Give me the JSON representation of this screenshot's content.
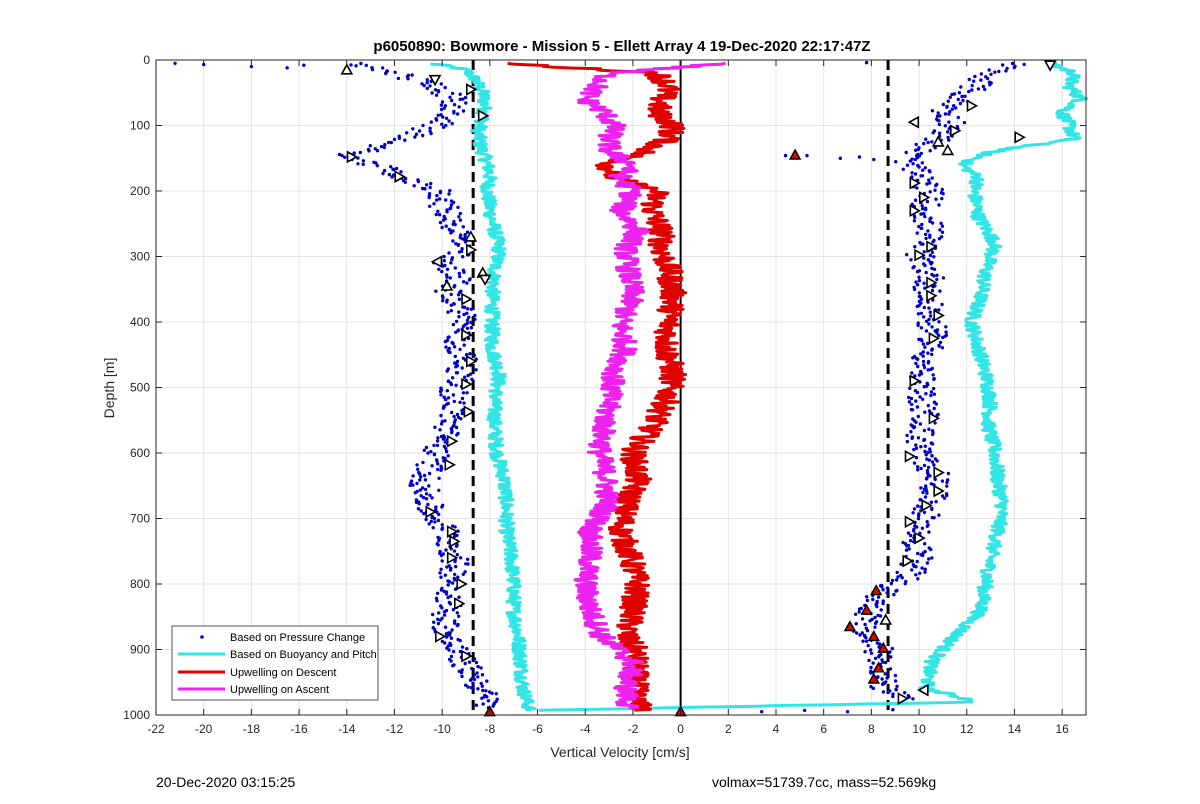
{
  "chart_data": {
    "type": "scatter",
    "title": "p6050890: Bowmore - Mission 5 - Ellett Array 4 19-Dec-2020 22:17:47Z",
    "xlabel": "Vertical Velocity [cm/s]",
    "ylabel": "Depth [m]",
    "xlim": [
      -22,
      17
    ],
    "ylim": [
      0,
      1000
    ],
    "y_reversed": true,
    "grid": true,
    "legend_position": "bottom-left",
    "x_ticks": [
      -22,
      -20,
      -18,
      -16,
      -14,
      -12,
      -10,
      -8,
      -6,
      -4,
      -2,
      0,
      2,
      4,
      6,
      8,
      10,
      12,
      14,
      16
    ],
    "y_ticks": [
      0,
      100,
      200,
      300,
      400,
      500,
      600,
      700,
      800,
      900,
      1000
    ],
    "x_tick_labels": [
      "-22",
      "-20",
      "-18",
      "-16",
      "-14",
      "-12",
      "-10",
      "-8",
      "-6",
      "-4",
      "-2",
      "0",
      "2",
      "4",
      "6",
      "8",
      "10",
      "12",
      "14",
      "16"
    ],
    "y_tick_labels": [
      "0",
      "100",
      "200",
      "300",
      "400",
      "500",
      "600",
      "700",
      "800",
      "900",
      "1000"
    ],
    "reference_lines": [
      {
        "x": -8.7,
        "style": "dashed",
        "color": "#000000"
      },
      {
        "x": 8.7,
        "style": "dashed",
        "color": "#000000"
      },
      {
        "x": 0,
        "style": "solid",
        "color": "#000000"
      }
    ],
    "series": [
      {
        "name": "Based on Pressure Change",
        "color": "#0000cc",
        "marker": "dot",
        "profiles": [
          {
            "depth": [
              5,
              20,
              40,
              60,
              90,
              120,
              140,
              150,
              160,
              170,
              180,
              200,
              220,
              250,
              280,
              300,
              310,
              330,
              350,
              380,
              400,
              430,
              460,
              500,
              540,
              580,
              620,
              650,
              690,
              720,
              760,
              800,
              840,
              880,
              910,
              950,
              990
            ],
            "velocity": [
              -14,
              -12,
              -10.2,
              -9.5,
              -9.8,
              -11.5,
              -13.5,
              -14,
              -13,
              -12,
              -11.8,
              -10,
              -10,
              -9.5,
              -9.2,
              -9.5,
              -10.2,
              -9.2,
              -9.8,
              -9.2,
              -9,
              -9.5,
              -9,
              -9.5,
              -9.5,
              -10,
              -10.5,
              -10.8,
              -10.5,
              -9.8,
              -9.5,
              -9.5,
              -9.8,
              -9.8,
              -9.3,
              -8.5,
              -8
            ]
          },
          {
            "depth": [
              5,
              20,
              50,
              80,
              100,
              120,
              150,
              180,
              200,
              230,
              260,
              300,
              330,
              360,
              400,
              430,
              460,
              500,
              540,
              580,
              610,
              640,
              670,
              700,
              730,
              760,
              790,
              810,
              840,
              870,
              900,
              930,
              960,
              975
            ],
            "velocity": [
              14,
              13,
              12,
              11,
              11.5,
              10.8,
              9.5,
              10,
              10.5,
              10.2,
              10.5,
              10,
              10.5,
              10.3,
              10.5,
              10.6,
              10.2,
              10,
              10.3,
              10,
              10.2,
              10.8,
              10.5,
              10.2,
              9.8,
              10,
              9.5,
              8.5,
              8,
              7.5,
              8.3,
              8.5,
              8.5,
              9.3
            ]
          }
        ],
        "outliers": [
          {
            "x": -21.2,
            "y": 5
          },
          {
            "x": -20,
            "y": 7
          },
          {
            "x": -18,
            "y": 10
          },
          {
            "x": -16.5,
            "y": 12
          },
          {
            "x": -15.8,
            "y": 8
          },
          {
            "x": 4.4,
            "y": 146
          },
          {
            "x": 5.3,
            "y": 146
          },
          {
            "x": 6.7,
            "y": 150
          },
          {
            "x": 7.5,
            "y": 148
          },
          {
            "x": 8.1,
            "y": 152
          },
          {
            "x": 3.4,
            "y": 995
          },
          {
            "x": 5.2,
            "y": 993
          },
          {
            "x": 7,
            "y": 995
          },
          {
            "x": 8.9,
            "y": 992
          },
          {
            "x": 7.8,
            "y": 4
          }
        ]
      },
      {
        "name": "Based on Buoyancy and Pitch",
        "color": "#33e6e6",
        "marker": "line",
        "profiles": [
          {
            "depth": [
              5,
              15,
              30,
              50,
              70,
              90,
              110,
              130,
              150,
              170,
              200,
              230,
              260,
              290,
              320,
              360,
              400,
              440,
              480,
              520,
              560,
              600,
              640,
              680,
              720,
              760,
              800,
              840,
              880,
              920,
              960,
              985,
              993
            ],
            "velocity": [
              -10.5,
              -9,
              -8.6,
              -8.3,
              -8.2,
              -8.3,
              -8.5,
              -8.4,
              -8.2,
              -8,
              -8.1,
              -8,
              -7.8,
              -7.6,
              -7.8,
              -7.9,
              -7.9,
              -7.9,
              -7.6,
              -7.8,
              -7.8,
              -7.7,
              -7.4,
              -7.3,
              -7.3,
              -7.1,
              -7,
              -7,
              -6.8,
              -6.7,
              -6.6,
              -6.4,
              -6.3
            ]
          },
          {
            "depth": [
              5,
              20,
              40,
              60,
              80,
              100,
              120,
              140,
              160,
              180,
              200,
              240,
              280,
              320,
              360,
              400,
              440,
              480,
              520,
              560,
              600,
              640,
              680,
              720,
              760,
              800,
              840,
              880,
              920,
              960,
              980,
              993
            ],
            "velocity": [
              15.5,
              16.5,
              16.3,
              16.8,
              16,
              16.3,
              16.5,
              13,
              11.8,
              12.5,
              12.3,
              12.5,
              13.2,
              12.8,
              12.6,
              12.2,
              12.5,
              12.8,
              13,
              12.9,
              13.2,
              13.3,
              13.5,
              13.3,
              13,
              12.8,
              12.6,
              11.5,
              10.5,
              10.3,
              12.5,
              -6.3
            ]
          }
        ]
      },
      {
        "name": "Upwelling on Descent",
        "color": "#e00000",
        "marker": "line",
        "profiles": [
          {
            "depth": [
              5,
              20,
              40,
              60,
              80,
              100,
              120,
              140,
              160,
              180,
              200,
              230,
              260,
              290,
              320,
              360,
              400,
              440,
              480,
              520,
              560,
              600,
              640,
              680,
              720,
              760,
              800,
              840,
              880,
              900,
              940,
              980,
              993
            ],
            "velocity": [
              -7.5,
              -1,
              -0.5,
              -0.8,
              -1,
              -0.3,
              -0.5,
              -1.5,
              -3,
              -2.8,
              -1,
              -1.2,
              -0.8,
              -0.8,
              -0.5,
              -0.3,
              -0.5,
              -0.6,
              -0.3,
              -0.6,
              -1.2,
              -2,
              -1.8,
              -2.3,
              -2.5,
              -2.1,
              -1.8,
              -2,
              -2.3,
              -1.9,
              -1.9,
              -1.9,
              -1.5
            ]
          }
        ]
      },
      {
        "name": "Upwelling on Ascent",
        "color": "#ee22ee",
        "marker": "line",
        "profiles": [
          {
            "depth": [
              5,
              20,
              40,
              60,
              80,
              100,
              120,
              140,
              160,
              180,
              200,
              230,
              260,
              290,
              320,
              360,
              400,
              440,
              480,
              520,
              560,
              600,
              640,
              680,
              720,
              760,
              800,
              840,
              880,
              920,
              960,
              990
            ],
            "velocity": [
              2,
              -3,
              -3.5,
              -4,
              -3.2,
              -2.8,
              -3,
              -3,
              -2,
              -2.6,
              -2,
              -2.5,
              -1.8,
              -2.3,
              -2.2,
              -2,
              -2.5,
              -2.3,
              -2.8,
              -3,
              -3.2,
              -3.4,
              -3.1,
              -3.1,
              -3.8,
              -3.8,
              -4,
              -3.8,
              -3.3,
              -2,
              -2.3,
              -2.2
            ]
          }
        ]
      }
    ],
    "markers": {
      "open_triangles": [
        {
          "x": -14,
          "y": 15,
          "dir": "up"
        },
        {
          "x": -10.3,
          "y": 30,
          "dir": "down"
        },
        {
          "x": -8.8,
          "y": 45,
          "dir": "right"
        },
        {
          "x": -8.3,
          "y": 85,
          "dir": "right"
        },
        {
          "x": -13.8,
          "y": 148,
          "dir": "right"
        },
        {
          "x": -11.8,
          "y": 178,
          "dir": "right"
        },
        {
          "x": -8.8,
          "y": 270,
          "dir": "up"
        },
        {
          "x": -8.8,
          "y": 290,
          "dir": "right"
        },
        {
          "x": -10.2,
          "y": 308,
          "dir": "left"
        },
        {
          "x": -8.3,
          "y": 325,
          "dir": "up"
        },
        {
          "x": -8.2,
          "y": 335,
          "dir": "down"
        },
        {
          "x": -9.8,
          "y": 345,
          "dir": "up"
        },
        {
          "x": -9,
          "y": 365,
          "dir": "right"
        },
        {
          "x": -9,
          "y": 420,
          "dir": "right"
        },
        {
          "x": -8.8,
          "y": 460,
          "dir": "right"
        },
        {
          "x": -9,
          "y": 495,
          "dir": "right"
        },
        {
          "x": -8.9,
          "y": 537,
          "dir": "right"
        },
        {
          "x": -9.6,
          "y": 582,
          "dir": "right"
        },
        {
          "x": -9.7,
          "y": 618,
          "dir": "right"
        },
        {
          "x": -10.5,
          "y": 690,
          "dir": "right"
        },
        {
          "x": -9.6,
          "y": 720,
          "dir": "right"
        },
        {
          "x": -9.5,
          "y": 735,
          "dir": "right"
        },
        {
          "x": -9.6,
          "y": 760,
          "dir": "right"
        },
        {
          "x": -9.2,
          "y": 800,
          "dir": "right"
        },
        {
          "x": -9.3,
          "y": 830,
          "dir": "right"
        },
        {
          "x": -10.1,
          "y": 880,
          "dir": "right"
        },
        {
          "x": -9,
          "y": 910,
          "dir": "right"
        },
        {
          "x": 15.5,
          "y": 8,
          "dir": "down"
        },
        {
          "x": 12.2,
          "y": 70,
          "dir": "right"
        },
        {
          "x": 11.5,
          "y": 108,
          "dir": "right"
        },
        {
          "x": 14.2,
          "y": 118,
          "dir": "right"
        },
        {
          "x": 9.8,
          "y": 95,
          "dir": "left"
        },
        {
          "x": 10.8,
          "y": 125,
          "dir": "up"
        },
        {
          "x": 11.2,
          "y": 138,
          "dir": "up"
        },
        {
          "x": 9.8,
          "y": 188,
          "dir": "right"
        },
        {
          "x": 10.2,
          "y": 210,
          "dir": "right"
        },
        {
          "x": 9.8,
          "y": 230,
          "dir": "right"
        },
        {
          "x": 10.5,
          "y": 285,
          "dir": "right"
        },
        {
          "x": 10,
          "y": 298,
          "dir": "right"
        },
        {
          "x": 10.5,
          "y": 340,
          "dir": "right"
        },
        {
          "x": 10.5,
          "y": 360,
          "dir": "right"
        },
        {
          "x": 10.8,
          "y": 390,
          "dir": "right"
        },
        {
          "x": 10.6,
          "y": 425,
          "dir": "right"
        },
        {
          "x": 9.8,
          "y": 490,
          "dir": "right"
        },
        {
          "x": 10.6,
          "y": 547,
          "dir": "right"
        },
        {
          "x": 9.6,
          "y": 605,
          "dir": "right"
        },
        {
          "x": 10.8,
          "y": 630,
          "dir": "right"
        },
        {
          "x": 10.8,
          "y": 658,
          "dir": "right"
        },
        {
          "x": 10.3,
          "y": 680,
          "dir": "right"
        },
        {
          "x": 9.6,
          "y": 705,
          "dir": "right"
        },
        {
          "x": 10,
          "y": 730,
          "dir": "right"
        },
        {
          "x": 9.5,
          "y": 765,
          "dir": "right"
        },
        {
          "x": 8.6,
          "y": 855,
          "dir": "up"
        },
        {
          "x": 10.2,
          "y": 962,
          "dir": "left"
        },
        {
          "x": 9.3,
          "y": 975,
          "dir": "right"
        }
      ],
      "red_triangles": [
        {
          "x": 4.8,
          "y": 145
        },
        {
          "x": 8.2,
          "y": 810
        },
        {
          "x": 7.8,
          "y": 840
        },
        {
          "x": 7.1,
          "y": 865
        },
        {
          "x": 8.1,
          "y": 880
        },
        {
          "x": 8.5,
          "y": 898
        },
        {
          "x": 8.3,
          "y": 928
        },
        {
          "x": 8.1,
          "y": 945
        },
        {
          "x": -8,
          "y": 995
        },
        {
          "x": 0,
          "y": 995
        }
      ]
    }
  },
  "footer": {
    "timestamp": "20-Dec-2020 03:15:25",
    "summary": "volmax=51739.7cc, mass=52.569kg"
  }
}
